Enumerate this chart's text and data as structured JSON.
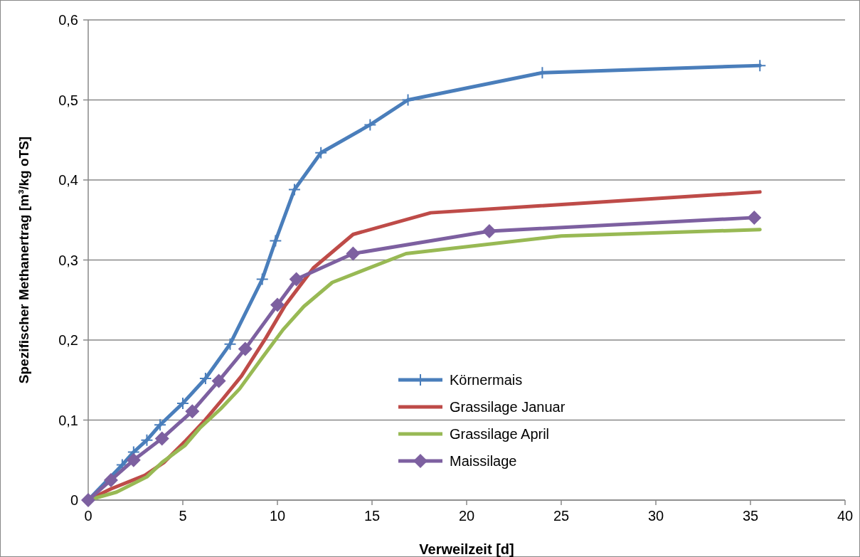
{
  "chart_data": {
    "type": "line",
    "xlabel": "Verweilzeit [d]",
    "ylabel": "Spezifischer Methanertrag [m³/kg oTS]",
    "xlim": [
      0,
      40
    ],
    "xticks": [
      0,
      5,
      10,
      15,
      20,
      25,
      30,
      35,
      40
    ],
    "ylim": [
      0,
      0.6
    ],
    "yticks": [
      0,
      {
        "value": 0.1,
        "label": "0,1"
      },
      {
        "value": 0.2,
        "label": "0,2"
      },
      {
        "value": 0.3,
        "label": "0,3"
      },
      {
        "value": 0.4,
        "label": "0,4"
      },
      {
        "value": 0.5,
        "label": "0,5"
      },
      {
        "value": 0.6,
        "label": "0,6"
      }
    ],
    "grid": "y",
    "legend": "bottom",
    "line_style": "solid",
    "series": [
      {
        "name": "Körnermais",
        "color": "#4a7ebb",
        "marker": "cross",
        "x": [
          0,
          1.8,
          2.4,
          3.1,
          3.8,
          5.0,
          6.2,
          7.5,
          9.2,
          9.9,
          10.9,
          12.3,
          14.9,
          16.9,
          24.0,
          35.5
        ],
        "values": [
          0,
          0.044,
          0.06,
          0.075,
          0.094,
          0.121,
          0.152,
          0.195,
          0.276,
          0.324,
          0.388,
          0.434,
          0.469,
          0.5,
          0.534,
          0.543
        ]
      },
      {
        "name": "Grassilage Januar",
        "color": "#be4b48",
        "marker": "none",
        "x": [
          0,
          1.2,
          3.0,
          4.0,
          5.1,
          6.1,
          7.1,
          8.1,
          9.4,
          10.4,
          11.9,
          14.0,
          18.1,
          35.5
        ],
        "values": [
          0,
          0.014,
          0.031,
          0.047,
          0.073,
          0.098,
          0.126,
          0.155,
          0.203,
          0.243,
          0.29,
          0.332,
          0.359,
          0.385
        ]
      },
      {
        "name": "Grassilage April",
        "color": "#98b954",
        "marker": "none",
        "x": [
          0,
          1.5,
          3.1,
          3.9,
          5.1,
          5.9,
          7.0,
          8.0,
          9.2,
          10.3,
          11.4,
          12.9,
          16.8,
          25.0,
          35.5
        ],
        "values": [
          0,
          0.01,
          0.029,
          0.047,
          0.068,
          0.09,
          0.114,
          0.139,
          0.178,
          0.213,
          0.242,
          0.272,
          0.308,
          0.33,
          0.338
        ]
      },
      {
        "name": "Maissilage",
        "color": "#7d60a0",
        "marker": "diamond",
        "x": [
          0,
          1.2,
          2.4,
          3.9,
          5.5,
          6.9,
          8.3,
          10.0,
          11.0,
          14.0,
          21.2,
          35.2
        ],
        "values": [
          0,
          0.025,
          0.05,
          0.077,
          0.111,
          0.149,
          0.189,
          0.244,
          0.276,
          0.308,
          0.336,
          0.353
        ]
      }
    ]
  }
}
